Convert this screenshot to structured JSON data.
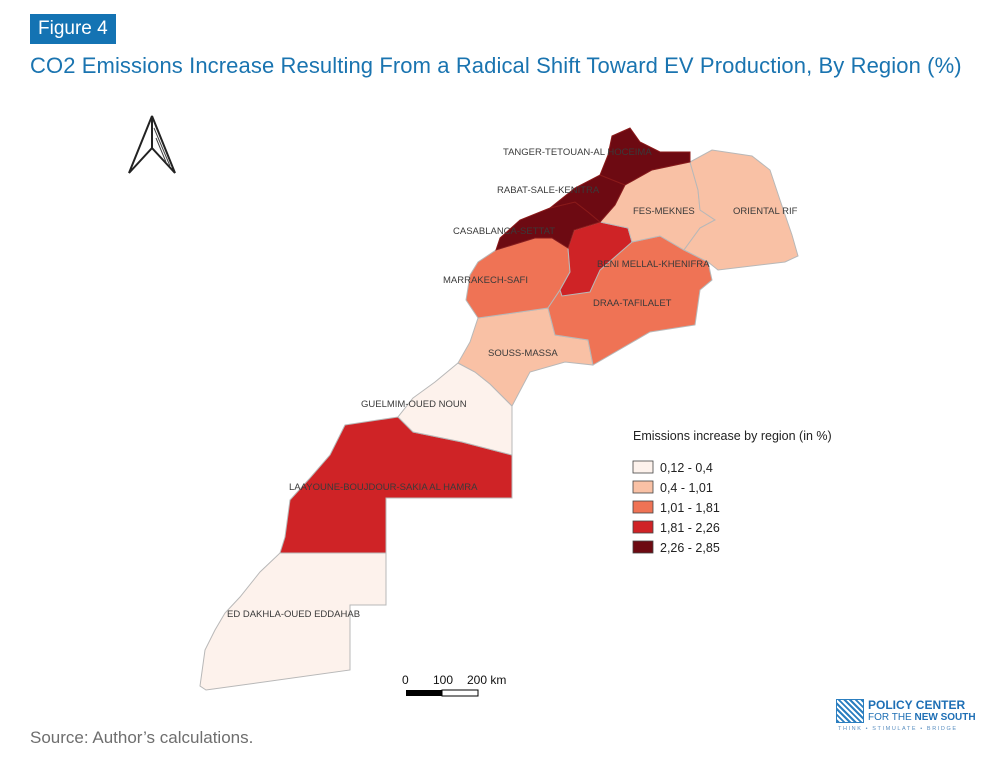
{
  "figure": {
    "badge": "Figure 4",
    "title": "CO2 Emissions Increase Resulting From a Radical Shift Toward EV Production, By Region (%)",
    "source": "Source: Author’s calculations."
  },
  "map": {
    "north_arrow_icon": "north-arrow-icon",
    "regions": [
      {
        "id": "tanger",
        "name": "TANGER-TETOUAN-AL HOCEIMA",
        "class": 4
      },
      {
        "id": "rabat",
        "name": "RABAT-SALE-KENITRA",
        "class": 4
      },
      {
        "id": "casa",
        "name": "CASABLANCA-SETTAT",
        "class": 4
      },
      {
        "id": "fes",
        "name": "FES-MEKNES",
        "class": 1
      },
      {
        "id": "oriental",
        "name": "ORIENTAL RIF",
        "class": 1
      },
      {
        "id": "beni",
        "name": "BENI MELLAL-KHENIFRA",
        "class": 3
      },
      {
        "id": "marrakech",
        "name": "MARRAKECH-SAFI",
        "class": 2
      },
      {
        "id": "draa",
        "name": "DRAA-TAFILALET",
        "class": 2
      },
      {
        "id": "souss",
        "name": "SOUSS-MASSA",
        "class": 1
      },
      {
        "id": "guelmim",
        "name": "GUELMIM-OUED NOUN",
        "class": 0
      },
      {
        "id": "laayoune",
        "name": "LAAYOUNE-BOUJDOUR-SAKIA AL HAMRA",
        "class": 3
      },
      {
        "id": "dakhla",
        "name": "ED DAKHLA-OUED EDDAHAB",
        "class": 0
      }
    ],
    "legend": {
      "title": "Emissions increase by region (in %)",
      "items": [
        {
          "label": "0,12 - 0,4",
          "color": "#fdf2ec"
        },
        {
          "label": "0,4 - 1,01",
          "color": "#f9c1a5"
        },
        {
          "label": "1,01 - 1,81",
          "color": "#ef7355"
        },
        {
          "label": "1,81 - 2,26",
          "color": "#cf2326"
        },
        {
          "label": "2,26 - 2,85",
          "color": "#6d0a12"
        }
      ]
    },
    "scale_bar": {
      "labels": [
        "0",
        "100",
        "200 km"
      ]
    }
  },
  "logo": {
    "line1": "POLICY CENTER",
    "line2_prefix": "FOR THE ",
    "line2_bold": "NEW SOUTH",
    "tagline": "THINK • STIMULATE • BRIDGE"
  }
}
